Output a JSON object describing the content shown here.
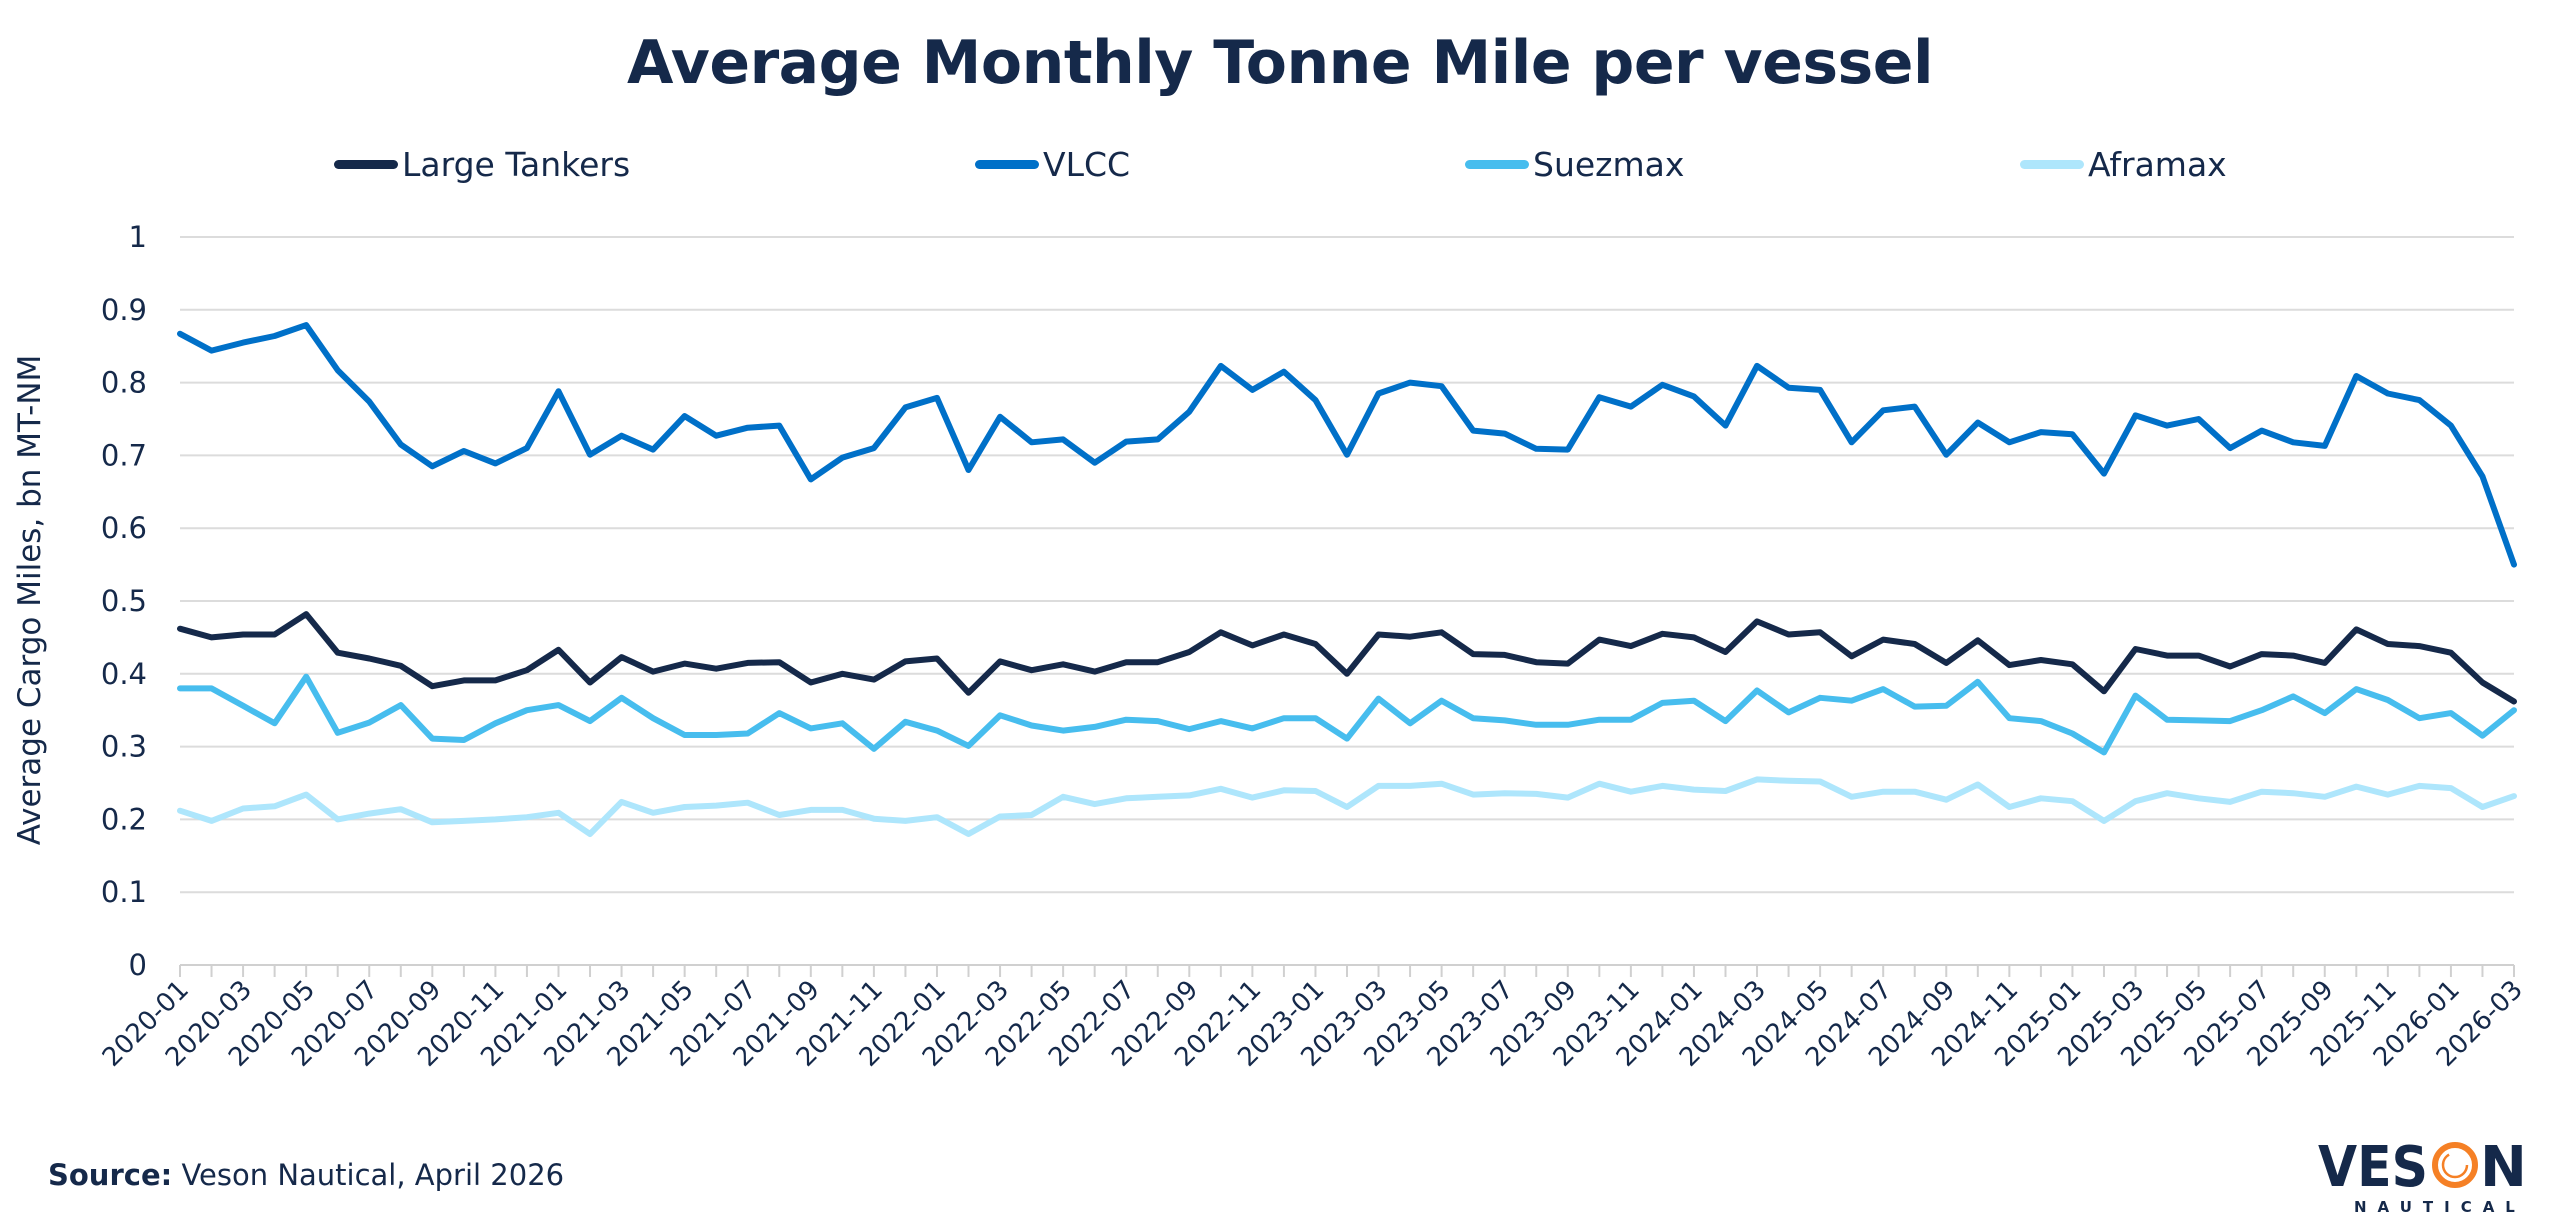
{
  "chart_data": {
    "type": "line",
    "title": "Average Monthly Tonne Mile per vessel",
    "xlabel": "",
    "ylabel": "Average Cargo Miles, bn MT-NM",
    "ylim": [
      0,
      1
    ],
    "yticks": [
      "0",
      "0.1",
      "0.2",
      "0.3",
      "0.4",
      "0.5",
      "0.6",
      "0.7",
      "0.8",
      "0.9",
      "1"
    ],
    "grid": true,
    "legend_position": "top",
    "x": [
      "2020-01",
      "2020-02",
      "2020-03",
      "2020-04",
      "2020-05",
      "2020-06",
      "2020-07",
      "2020-08",
      "2020-09",
      "2020-10",
      "2020-11",
      "2020-12",
      "2021-01",
      "2021-02",
      "2021-03",
      "2021-04",
      "2021-05",
      "2021-06",
      "2021-07",
      "2021-08",
      "2021-09",
      "2021-10",
      "2021-11",
      "2021-12",
      "2022-01",
      "2022-02",
      "2022-03",
      "2022-04",
      "2022-05",
      "2022-06",
      "2022-07",
      "2022-08",
      "2022-09",
      "2022-10",
      "2022-11",
      "2022-12",
      "2023-01",
      "2023-02",
      "2023-03",
      "2023-04",
      "2023-05",
      "2023-06",
      "2023-07",
      "2023-08",
      "2023-09",
      "2023-10",
      "2023-11",
      "2023-12",
      "2024-01",
      "2024-02",
      "2024-03",
      "2024-04",
      "2024-05",
      "2024-06",
      "2024-07",
      "2024-08",
      "2024-09",
      "2024-10",
      "2024-11",
      "2024-12",
      "2025-01",
      "2025-02",
      "2025-03",
      "2025-04",
      "2025-05",
      "2025-06",
      "2025-07",
      "2025-08",
      "2025-09",
      "2025-10",
      "2025-11",
      "2025-12",
      "2026-01",
      "2026-02",
      "2026-03"
    ],
    "series": [
      {
        "name": "Large Tankers",
        "color": "#15294a",
        "values": [
          0.462,
          0.45,
          0.454,
          0.454,
          0.482,
          0.429,
          0.421,
          0.411,
          0.383,
          0.391,
          0.391,
          0.405,
          0.433,
          0.388,
          0.423,
          0.403,
          0.414,
          0.407,
          0.415,
          0.416,
          0.388,
          0.4,
          0.392,
          0.417,
          0.421,
          0.374,
          0.417,
          0.405,
          0.413,
          0.403,
          0.416,
          0.416,
          0.43,
          0.457,
          0.439,
          0.454,
          0.441,
          0.4,
          0.454,
          0.451,
          0.457,
          0.427,
          0.426,
          0.416,
          0.414,
          0.447,
          0.438,
          0.455,
          0.45,
          0.43,
          0.472,
          0.454,
          0.457,
          0.424,
          0.447,
          0.441,
          0.415,
          0.446,
          0.412,
          0.419,
          0.413,
          0.376,
          0.434,
          0.425,
          0.425,
          0.41,
          0.427,
          0.425,
          0.415,
          0.461,
          0.441,
          0.438,
          0.429,
          0.388,
          0.362
        ]
      },
      {
        "name": "VLCC",
        "color": "#0070c8",
        "values": [
          0.867,
          0.844,
          0.855,
          0.864,
          0.879,
          0.817,
          0.774,
          0.715,
          0.685,
          0.706,
          0.689,
          0.71,
          0.788,
          0.701,
          0.727,
          0.708,
          0.754,
          0.727,
          0.738,
          0.741,
          0.667,
          0.697,
          0.71,
          0.766,
          0.779,
          0.68,
          0.753,
          0.718,
          0.722,
          0.69,
          0.719,
          0.722,
          0.76,
          0.823,
          0.79,
          0.815,
          0.776,
          0.701,
          0.785,
          0.8,
          0.795,
          0.734,
          0.73,
          0.709,
          0.708,
          0.78,
          0.767,
          0.797,
          0.781,
          0.741,
          0.823,
          0.793,
          0.79,
          0.718,
          0.762,
          0.767,
          0.701,
          0.745,
          0.718,
          0.732,
          0.729,
          0.675,
          0.755,
          0.741,
          0.75,
          0.71,
          0.734,
          0.718,
          0.713,
          0.809,
          0.785,
          0.776,
          0.741,
          0.671,
          0.55
        ]
      },
      {
        "name": "Suezmax",
        "color": "#47bdee",
        "values": [
          0.38,
          0.38,
          0.356,
          0.332,
          0.396,
          0.319,
          0.333,
          0.357,
          0.311,
          0.309,
          0.332,
          0.35,
          0.357,
          0.335,
          0.367,
          0.339,
          0.316,
          0.316,
          0.318,
          0.346,
          0.325,
          0.332,
          0.297,
          0.334,
          0.322,
          0.301,
          0.343,
          0.329,
          0.322,
          0.327,
          0.337,
          0.335,
          0.324,
          0.335,
          0.325,
          0.339,
          0.339,
          0.311,
          0.366,
          0.332,
          0.363,
          0.339,
          0.336,
          0.33,
          0.33,
          0.337,
          0.337,
          0.36,
          0.363,
          0.335,
          0.377,
          0.347,
          0.367,
          0.363,
          0.379,
          0.355,
          0.356,
          0.389,
          0.339,
          0.335,
          0.318,
          0.292,
          0.37,
          0.337,
          0.336,
          0.335,
          0.35,
          0.369,
          0.346,
          0.379,
          0.364,
          0.339,
          0.346,
          0.315,
          0.35
        ]
      },
      {
        "name": "Aframax",
        "color": "#aee6fc",
        "values": [
          0.212,
          0.198,
          0.215,
          0.218,
          0.234,
          0.2,
          0.208,
          0.214,
          0.196,
          0.198,
          0.2,
          0.203,
          0.209,
          0.18,
          0.224,
          0.209,
          0.217,
          0.219,
          0.223,
          0.206,
          0.213,
          0.213,
          0.201,
          0.198,
          0.203,
          0.18,
          0.204,
          0.206,
          0.231,
          0.221,
          0.229,
          0.231,
          0.233,
          0.242,
          0.23,
          0.24,
          0.239,
          0.217,
          0.246,
          0.246,
          0.249,
          0.234,
          0.236,
          0.235,
          0.23,
          0.249,
          0.238,
          0.246,
          0.241,
          0.239,
          0.255,
          0.253,
          0.252,
          0.231,
          0.238,
          0.238,
          0.227,
          0.248,
          0.217,
          0.229,
          0.225,
          0.198,
          0.225,
          0.236,
          0.229,
          0.224,
          0.238,
          0.236,
          0.231,
          0.245,
          0.234,
          0.246,
          0.243,
          0.217,
          0.232
        ]
      }
    ]
  },
  "source": {
    "label": "Source:",
    "text": "Veson Nautical, April 2026"
  },
  "logo": {
    "wordmark": "VESON",
    "subtitle": "NAUTICAL",
    "accent_color": "#f58025"
  }
}
